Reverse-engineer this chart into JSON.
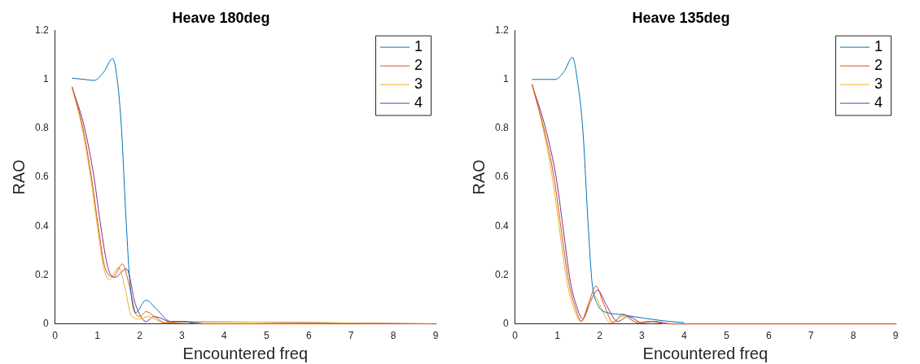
{
  "chart_data": [
    {
      "type": "line",
      "title": "Heave 180deg",
      "xlabel": "Encountered freq",
      "ylabel": "RAO",
      "xlim": [
        0,
        9
      ],
      "ylim": [
        0,
        1.2
      ],
      "xticks": [
        0,
        1,
        2,
        3,
        4,
        5,
        6,
        7,
        8,
        9
      ],
      "yticks": [
        0,
        0.2,
        0.4,
        0.6,
        0.8,
        1,
        1.2
      ],
      "legend": "top right",
      "series": [
        {
          "name": "1",
          "color": "#0072bd",
          "x": [
            0.4,
            0.7,
            0.92,
            1.15,
            1.36,
            1.47,
            1.57,
            1.67,
            1.77,
            1.9,
            2.15,
            2.4,
            2.73,
            3,
            3.5
          ],
          "values": [
            1.005,
            1.0,
            0.996,
            1.03,
            1.085,
            1.0,
            0.8,
            0.456,
            0.17,
            0.045,
            0.097,
            0.06,
            0.01,
            0.01,
            0
          ]
        },
        {
          "name": "2",
          "color": "#d95319",
          "x": [
            0.4,
            0.66,
            0.86,
            1.02,
            1.18,
            1.38,
            1.59,
            1.75,
            1.9,
            2.0,
            2.15,
            2.35,
            2.6,
            3.0,
            3.4,
            9
          ],
          "values": [
            0.97,
            0.8,
            0.6,
            0.4,
            0.23,
            0.194,
            0.245,
            0.16,
            0.045,
            0.03,
            0.05,
            0.03,
            0.005,
            0.01,
            0,
            0
          ]
        },
        {
          "name": "3",
          "color": "#edb120",
          "x": [
            0.4,
            0.64,
            0.84,
            1.0,
            1.15,
            1.28,
            1.5,
            1.65,
            1.8,
            2.0,
            2.2,
            2.6,
            3.0,
            9
          ],
          "values": [
            0.97,
            0.8,
            0.6,
            0.4,
            0.23,
            0.18,
            0.23,
            0.15,
            0.035,
            0.02,
            0.03,
            0.003,
            0.008,
            0
          ]
        },
        {
          "name": "4",
          "color": "#7e2f8e",
          "x": [
            0.4,
            0.7,
            0.92,
            1.08,
            1.25,
            1.41,
            1.69,
            1.9,
            2.15,
            2.34,
            2.8,
            3.2,
            9
          ],
          "values": [
            0.97,
            0.8,
            0.6,
            0.4,
            0.23,
            0.19,
            0.225,
            0.08,
            0.01,
            0.03,
            0.005,
            0.008,
            0
          ]
        }
      ]
    },
    {
      "type": "line",
      "title": "Heave 135deg",
      "xlabel": "Encountered freq",
      "ylabel": "RAO",
      "xlim": [
        0,
        9
      ],
      "ylim": [
        0,
        1.2
      ],
      "xticks": [
        0,
        1,
        2,
        3,
        4,
        5,
        6,
        7,
        8,
        9
      ],
      "yticks": [
        0,
        0.2,
        0.4,
        0.6,
        0.8,
        1,
        1.2
      ],
      "legend": "top right",
      "series": [
        {
          "name": "1",
          "color": "#0072bd",
          "x": [
            0.4,
            0.7,
            0.95,
            1.15,
            1.36,
            1.47,
            1.6,
            1.73,
            1.82,
            1.95,
            2.2,
            2.42,
            2.6,
            3.06,
            3.59,
            4
          ],
          "values": [
            1.0,
            1.0,
            1.0,
            1.03,
            1.09,
            1.0,
            0.8,
            0.4,
            0.17,
            0.08,
            0.045,
            0.04,
            0.035,
            0.023,
            0.011,
            0.005
          ]
        },
        {
          "name": "2",
          "color": "#d95319",
          "x": [
            0.4,
            0.68,
            0.92,
            1.08,
            1.27,
            1.42,
            1.57,
            1.75,
            1.91,
            2.1,
            2.32,
            2.55,
            2.9,
            3.2,
            3.6,
            9
          ],
          "values": [
            0.98,
            0.8,
            0.6,
            0.4,
            0.17,
            0.07,
            0.01,
            0.09,
            0.154,
            0.08,
            0.005,
            0.04,
            0.005,
            0.01,
            0,
            0
          ]
        },
        {
          "name": "3",
          "color": "#edb120",
          "x": [
            0.4,
            0.66,
            0.88,
            1.04,
            1.23,
            1.4,
            1.55,
            1.72,
            1.87,
            2.05,
            2.25,
            2.55,
            2.9,
            3.2,
            3.6,
            9
          ],
          "values": [
            0.98,
            0.8,
            0.6,
            0.4,
            0.17,
            0.06,
            0.01,
            0.07,
            0.115,
            0.06,
            0.005,
            0.03,
            0.005,
            0.01,
            0,
            0
          ]
        },
        {
          "name": "4",
          "color": "#7e2f8e",
          "x": [
            0.4,
            0.72,
            0.97,
            1.13,
            1.31,
            1.46,
            1.6,
            1.78,
            1.95,
            2.15,
            2.42,
            2.68,
            3.0,
            3.3,
            3.7,
            9
          ],
          "values": [
            0.98,
            0.8,
            0.6,
            0.4,
            0.17,
            0.07,
            0.02,
            0.09,
            0.138,
            0.08,
            0.01,
            0.03,
            0.005,
            0.01,
            0,
            0
          ]
        }
      ]
    }
  ]
}
